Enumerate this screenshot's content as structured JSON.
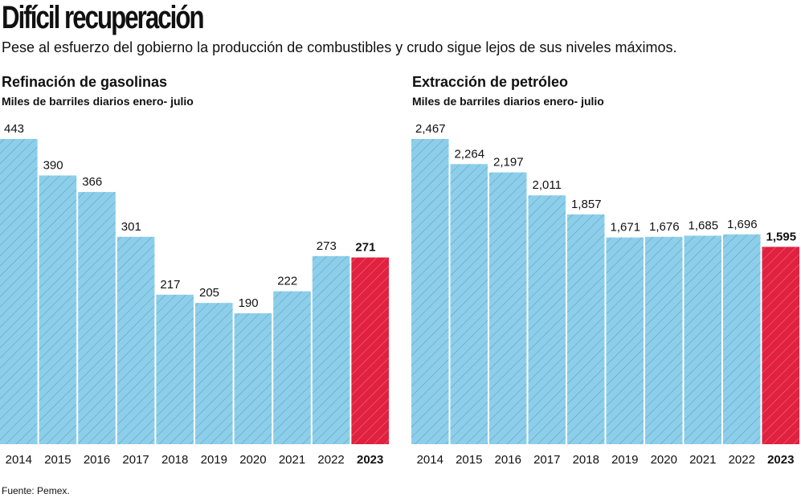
{
  "header": {
    "title": "Difícil recuperación",
    "subtitle": "Pese al esfuerzo del gobierno la producción de combustibles y crudo sigue lejos de sus niveles máximos."
  },
  "source": "Fuente: Pemex.",
  "colors": {
    "bar": "#8dcfea",
    "highlight": "#e0213f",
    "hatch": "#5a9bb8",
    "hatch_highlight": "#f27a8e"
  },
  "chart_data": [
    {
      "type": "bar",
      "title": "Refinación de gasolinas",
      "subtitle": "Miles de barriles diarios enero- julio",
      "categories": [
        "2014",
        "2015",
        "2016",
        "2017",
        "2018",
        "2019",
        "2020",
        "2021",
        "2022",
        "2023"
      ],
      "values": [
        443,
        390,
        366,
        301,
        217,
        205,
        190,
        222,
        273,
        271
      ],
      "labels": [
        "443",
        "390",
        "366",
        "301",
        "217",
        "205",
        "190",
        "222",
        "273",
        "271"
      ],
      "highlight": "2023",
      "ylim": [
        0,
        443
      ]
    },
    {
      "type": "bar",
      "title": "Extracción de petróleo",
      "subtitle": "Miles de barriles diarios enero- julio",
      "categories": [
        "2014",
        "2015",
        "2016",
        "2017",
        "2018",
        "2019",
        "2020",
        "2021",
        "2022",
        "2023"
      ],
      "values": [
        2467,
        2264,
        2197,
        2011,
        1857,
        1671,
        1676,
        1685,
        1696,
        1595
      ],
      "labels": [
        "2,467",
        "2,264",
        "2,197",
        "2,011",
        "1,857",
        "1,671",
        "1,676",
        "1,685",
        "1,696",
        "1,595"
      ],
      "highlight": "2023",
      "ylim": [
        0,
        2467
      ]
    }
  ]
}
